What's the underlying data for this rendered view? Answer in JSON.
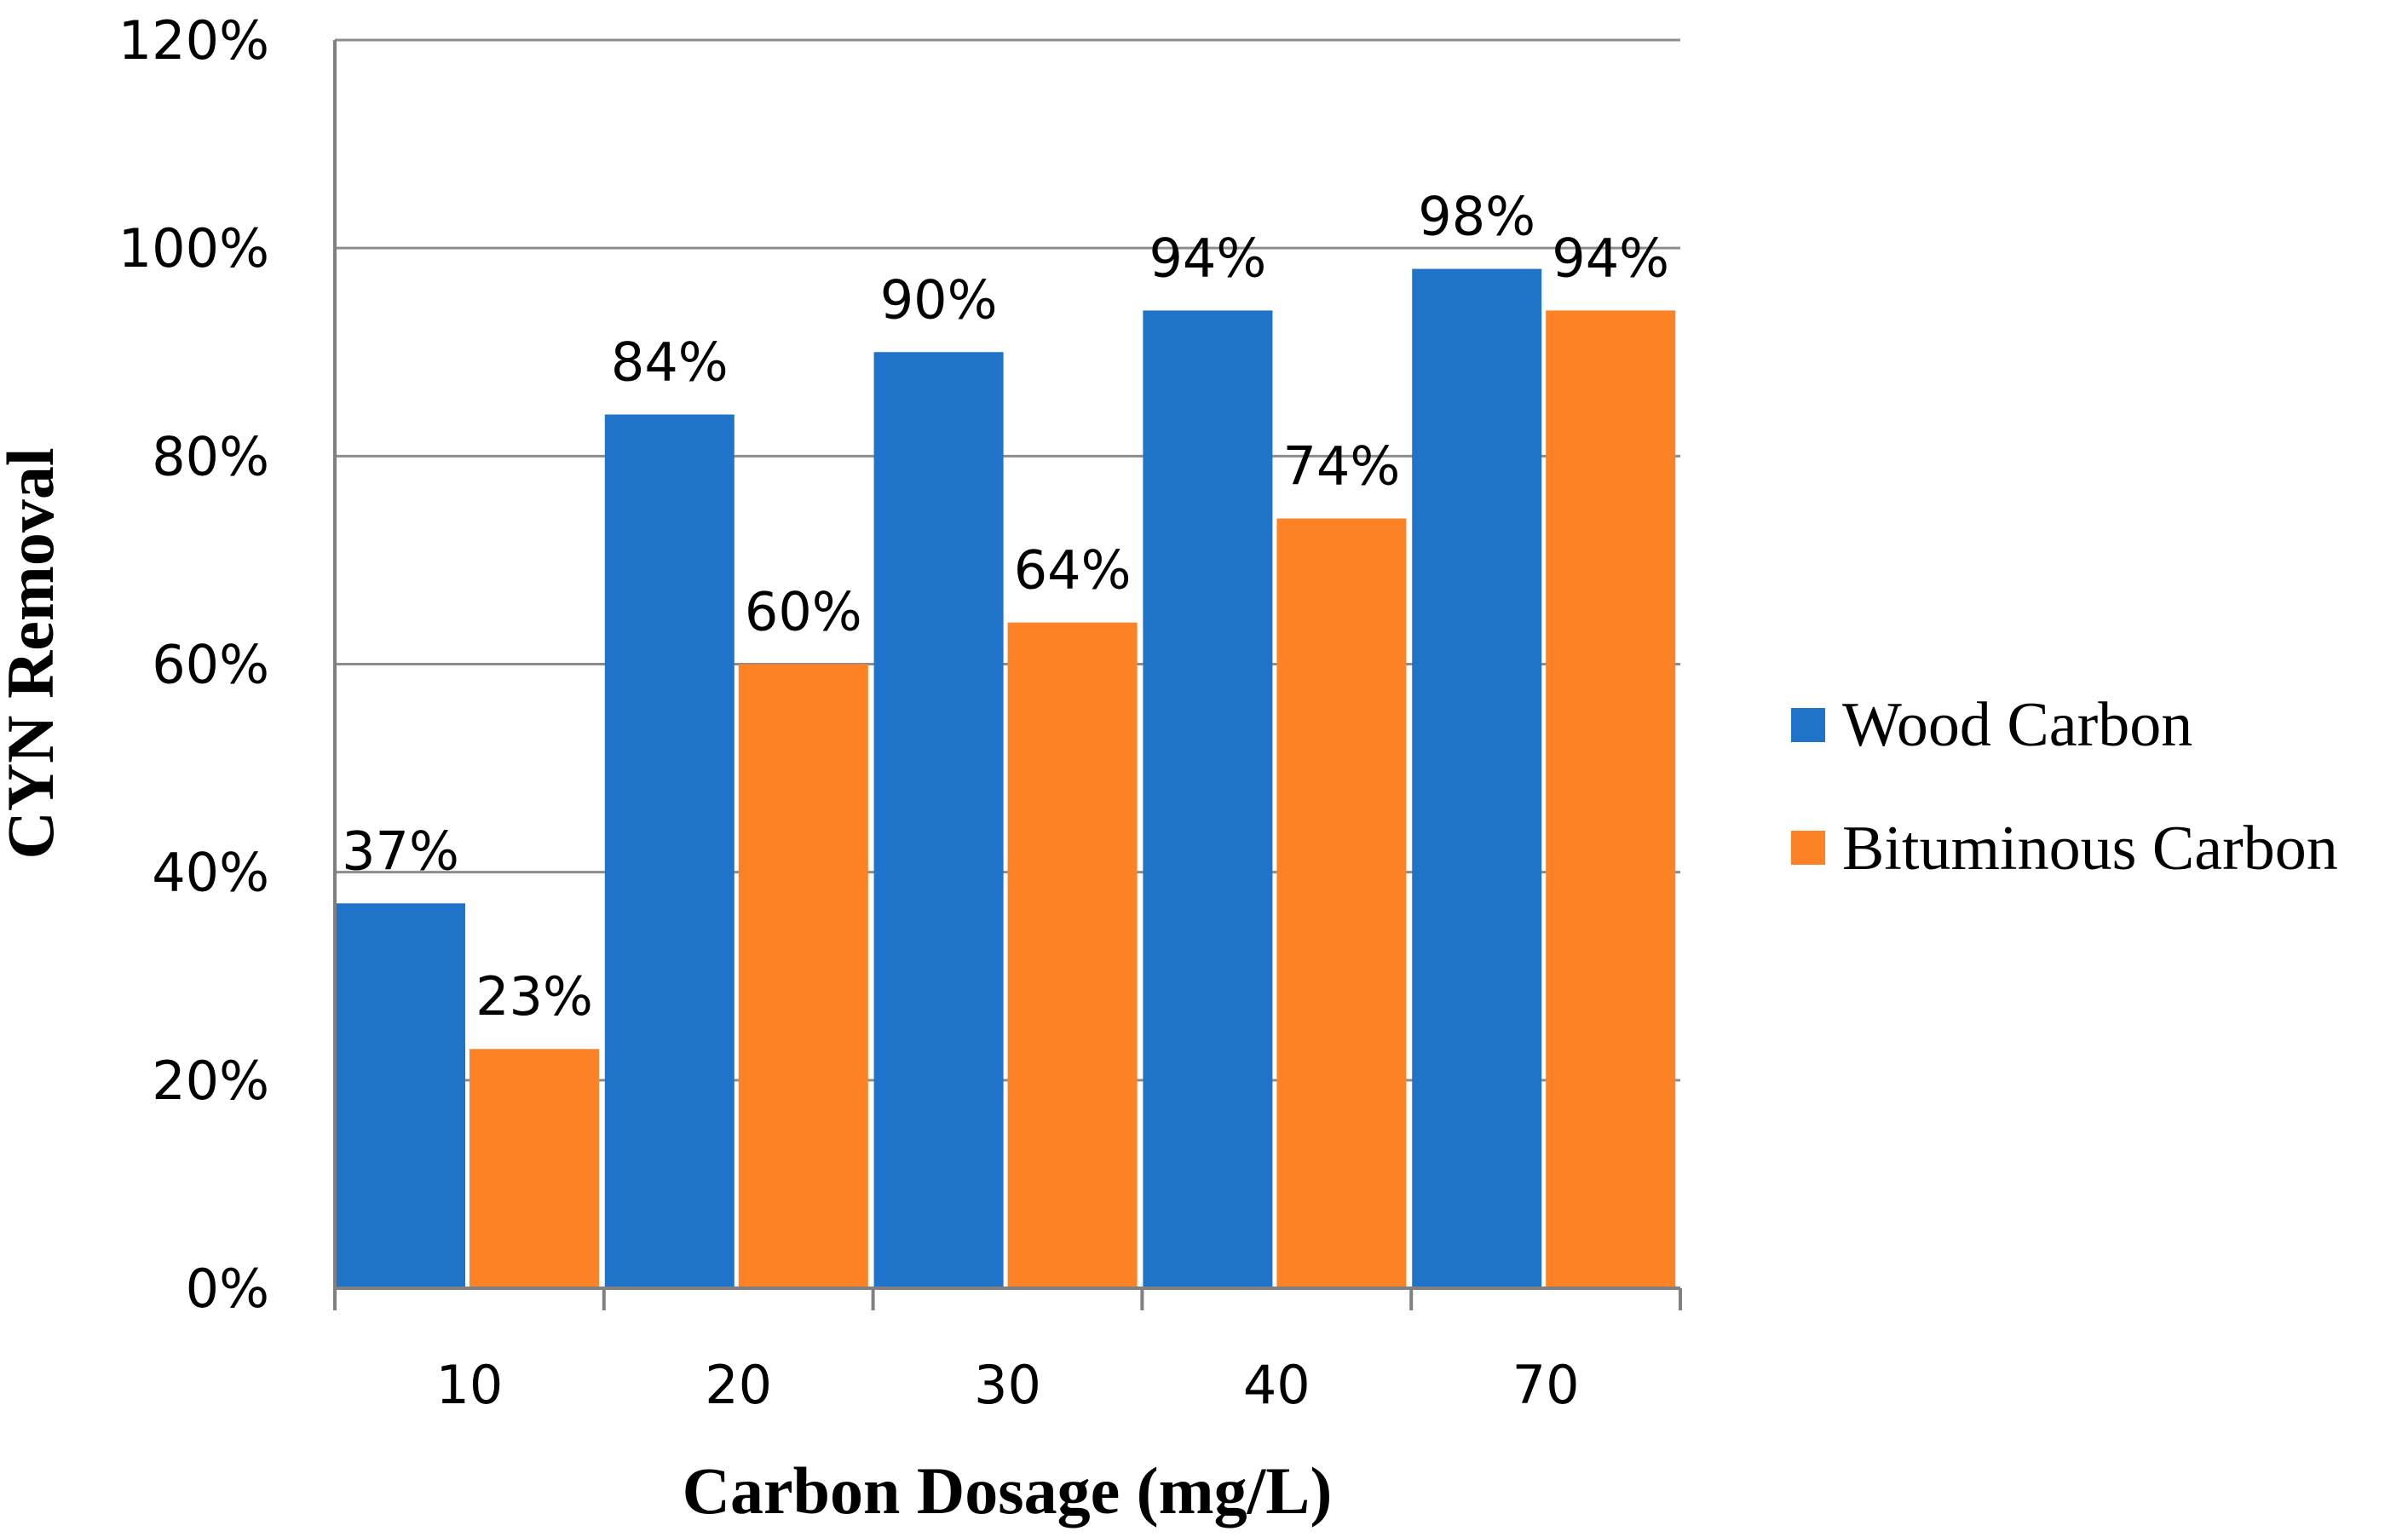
{
  "chart_data": {
    "type": "bar",
    "title": "",
    "xlabel": "Carbon Dosage (mg/L)",
    "ylabel": "CYN Removal",
    "categories": [
      "10",
      "20",
      "30",
      "40",
      "70"
    ],
    "ylim": [
      0,
      120
    ],
    "yticks": [
      0,
      20,
      40,
      60,
      80,
      100,
      120
    ],
    "ytick_labels": [
      "0%",
      "20%",
      "40%",
      "60%",
      "80%",
      "100%",
      "120%"
    ],
    "grid": true,
    "legend_position": "right",
    "series": [
      {
        "name": "Wood Carbon",
        "color": "#1F74C9",
        "values": [
          37,
          84,
          90,
          94,
          98
        ],
        "data_labels": [
          "37%",
          "84%",
          "90%",
          "94%",
          "98%"
        ]
      },
      {
        "name": "Bituminous Carbon",
        "color": "#FD8226",
        "values": [
          23,
          60,
          64,
          74,
          94
        ],
        "data_labels": [
          "23%",
          "60%",
          "64%",
          "74%",
          "94%"
        ]
      }
    ]
  }
}
